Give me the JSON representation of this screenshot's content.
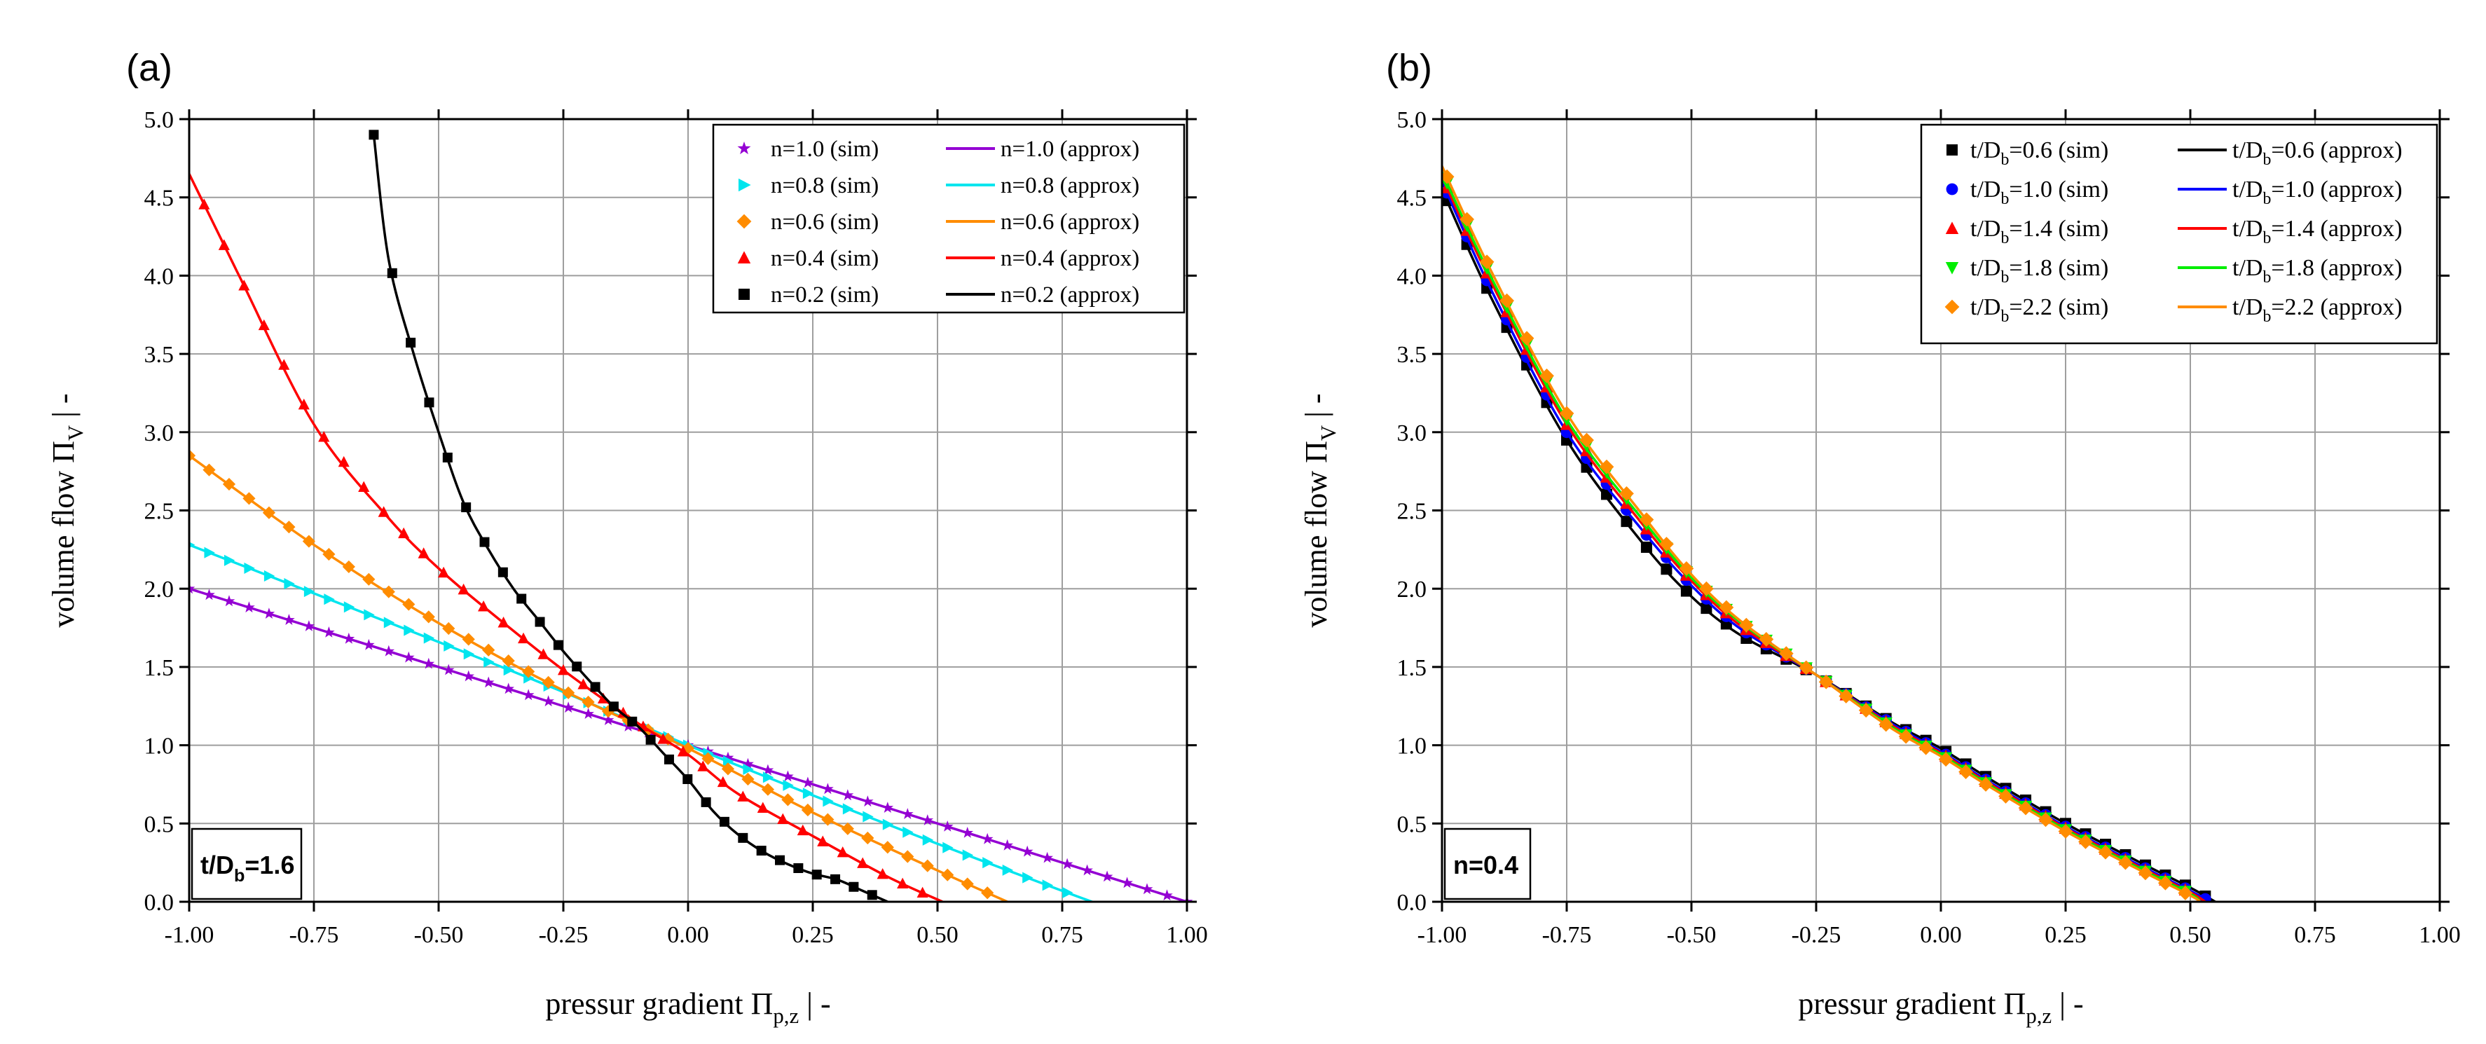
{
  "chart_data": [
    {
      "panel_label": "(a)",
      "type": "line",
      "xlabel": "pressur gradient Π_p,z | -",
      "xlabel_main": "pressur gradient Π",
      "xlabel_sub": "p,z",
      "xlabel_tail": "  |  -",
      "ylabel": "volume flow Π_V | -",
      "ylabel_main": "volume flow Π",
      "ylabel_sub": "V",
      "ylabel_tail": "  |  -",
      "xlim": [
        -1.0,
        1.0
      ],
      "ylim": [
        0.0,
        5.0
      ],
      "xticks": [
        -1.0,
        -0.75,
        -0.5,
        -0.25,
        0.0,
        0.25,
        0.5,
        0.75,
        1.0
      ],
      "xtick_labels": [
        "-1.00",
        "-0.75",
        "-0.50",
        "-0.25",
        "0.00",
        "0.25",
        "0.50",
        "0.75",
        "1.00"
      ],
      "yticks": [
        0.0,
        0.5,
        1.0,
        1.5,
        2.0,
        2.5,
        3.0,
        3.5,
        4.0,
        4.5,
        5.0
      ],
      "ytick_labels": [
        "0.0",
        "0.5",
        "1.0",
        "1.5",
        "2.0",
        "2.5",
        "3.0",
        "3.5",
        "4.0",
        "4.5",
        "5.0"
      ],
      "grid": true,
      "annotation": {
        "main": "t/D",
        "sub": "b",
        "tail": "=1.6"
      },
      "legend_position": "top-right",
      "series": [
        {
          "name": "n=1.0",
          "sim_label": "n=1.0 (sim)",
          "approx_label": "n=1.0 (approx)",
          "color": "#9400D3",
          "marker": "star",
          "x": [
            -1.0,
            -0.5,
            0.0,
            0.5,
            1.0
          ],
          "y": [
            2.0,
            1.5,
            1.0,
            0.5,
            0.0
          ],
          "marker_x": [
            -1.0,
            1.0
          ],
          "marker_step": 0.04
        },
        {
          "name": "n=0.8",
          "sim_label": "n=0.8 (sim)",
          "approx_label": "n=0.8 (approx)",
          "color": "#00E5EE",
          "marker": "triangle-right",
          "x": [
            -1.0,
            -0.75,
            -0.5,
            -0.25,
            0.0,
            0.25,
            0.5,
            0.75,
            0.81
          ],
          "y": [
            2.28,
            1.97,
            1.66,
            1.34,
            1.0,
            0.68,
            0.37,
            0.07,
            0.0
          ],
          "marker_x": [
            -1.0,
            0.79
          ],
          "marker_step": 0.04
        },
        {
          "name": "n=0.6",
          "sim_label": "n=0.6 (sim)",
          "approx_label": "n=0.6 (approx)",
          "color": "#FF8C00",
          "marker": "diamond",
          "x": [
            -1.0,
            -0.75,
            -0.5,
            -0.25,
            0.0,
            0.25,
            0.5,
            0.64
          ],
          "y": [
            2.85,
            2.28,
            1.78,
            1.35,
            0.98,
            0.57,
            0.2,
            0.0
          ],
          "marker_x": [
            -1.0,
            0.63
          ],
          "marker_step": 0.04
        },
        {
          "name": "n=0.4",
          "sim_label": "n=0.4 (sim)",
          "approx_label": "n=0.4 (approx)",
          "color": "#FF0000",
          "marker": "triangle-up",
          "x": [
            -1.0,
            -0.9,
            -0.75,
            -0.6,
            -0.5,
            -0.4,
            -0.25,
            -0.1,
            0.0,
            0.1,
            0.25,
            0.4,
            0.51
          ],
          "y": [
            4.65,
            4.0,
            3.05,
            2.45,
            2.13,
            1.86,
            1.48,
            1.14,
            0.94,
            0.69,
            0.42,
            0.16,
            0.0
          ],
          "marker_x": [
            -0.97,
            0.49
          ],
          "marker_step": 0.04
        },
        {
          "name": "n=0.2",
          "sim_label": "n=0.2 (sim)",
          "approx_label": "n=0.2 (approx)",
          "color": "#000000",
          "marker": "square",
          "x": [
            -0.63,
            -0.6,
            -0.55,
            -0.5,
            -0.45,
            -0.4,
            -0.35,
            -0.3,
            -0.25,
            -0.2,
            -0.15,
            -0.1,
            -0.05,
            0.0,
            0.05,
            0.1,
            0.15,
            0.2,
            0.25,
            0.3,
            0.35,
            0.4
          ],
          "y": [
            4.9,
            4.1,
            3.5,
            3.0,
            2.55,
            2.25,
            2.0,
            1.8,
            1.6,
            1.42,
            1.25,
            1.12,
            0.95,
            0.78,
            0.58,
            0.43,
            0.32,
            0.24,
            0.18,
            0.14,
            0.07,
            0.0
          ],
          "marker_x": [
            -0.63,
            0.4
          ],
          "marker_step": 0.037
        }
      ]
    },
    {
      "panel_label": "(b)",
      "type": "line",
      "xlabel": "pressur gradient Π_p,z | -",
      "xlabel_main": "pressur gradient Π",
      "xlabel_sub": "p,z",
      "xlabel_tail": "  |  -",
      "ylabel": "volume flow Π_V | -",
      "ylabel_main": "volume flow Π",
      "ylabel_sub": "V",
      "ylabel_tail": "  |  -",
      "xlim": [
        -1.0,
        1.0
      ],
      "ylim": [
        0.0,
        5.0
      ],
      "xticks": [
        -1.0,
        -0.75,
        -0.5,
        -0.25,
        0.0,
        0.25,
        0.5,
        0.75,
        1.0
      ],
      "xtick_labels": [
        "-1.00",
        "-0.75",
        "-0.50",
        "-0.25",
        "0.00",
        "0.25",
        "0.50",
        "0.75",
        "1.00"
      ],
      "yticks": [
        0.0,
        0.5,
        1.0,
        1.5,
        2.0,
        2.5,
        3.0,
        3.5,
        4.0,
        4.5,
        5.0
      ],
      "ytick_labels": [
        "0.0",
        "0.5",
        "1.0",
        "1.5",
        "2.0",
        "2.5",
        "3.0",
        "3.5",
        "4.0",
        "4.5",
        "5.0"
      ],
      "grid": true,
      "annotation": {
        "main": "n=0.4",
        "sub": "",
        "tail": ""
      },
      "legend_position": "top-right",
      "series": [
        {
          "name": "t/Db=0.6",
          "sim_main": "t/D",
          "sim_sub": "b",
          "sim_tail": "=0.6 (sim)",
          "approx_main": "t/D",
          "approx_sub": "b",
          "approx_tail": "=0.6 (approx)",
          "color": "#000000",
          "marker": "square",
          "x": [
            -1.0,
            -0.9,
            -0.75,
            -0.6,
            -0.5,
            -0.4,
            -0.25,
            -0.1,
            0.0,
            0.1,
            0.25,
            0.4,
            0.5,
            0.55
          ],
          "y": [
            4.55,
            3.85,
            2.95,
            2.3,
            1.95,
            1.7,
            1.45,
            1.15,
            0.98,
            0.78,
            0.5,
            0.25,
            0.09,
            0.0
          ],
          "marker_x": [
            -0.99,
            0.55
          ],
          "marker_step": 0.04
        },
        {
          "name": "t/Db=1.0",
          "sim_main": "t/D",
          "sim_sub": "b",
          "sim_tail": "=1.0 (sim)",
          "approx_main": "t/D",
          "approx_sub": "b",
          "approx_tail": "=1.0 (approx)",
          "color": "#0000FF",
          "marker": "circle",
          "x": [
            -1.0,
            -0.9,
            -0.75,
            -0.6,
            -0.5,
            -0.4,
            -0.25,
            -0.1,
            0.0,
            0.1,
            0.25,
            0.4,
            0.5,
            0.54
          ],
          "y": [
            4.6,
            3.9,
            3.0,
            2.38,
            2.02,
            1.74,
            1.45,
            1.14,
            0.96,
            0.76,
            0.48,
            0.23,
            0.07,
            0.0
          ],
          "marker_x": [
            -0.99,
            0.53
          ],
          "marker_step": 0.04
        },
        {
          "name": "t/Db=1.4",
          "sim_main": "t/D",
          "sim_sub": "b",
          "sim_tail": "=1.4 (sim)",
          "approx_main": "t/D",
          "approx_sub": "b",
          "approx_tail": "=1.4 (approx)",
          "color": "#FF0000",
          "marker": "triangle-up",
          "x": [
            -1.0,
            -0.9,
            -0.75,
            -0.6,
            -0.5,
            -0.4,
            -0.25,
            -0.1,
            0.0,
            0.1,
            0.25,
            0.4,
            0.5,
            0.53
          ],
          "y": [
            4.63,
            3.95,
            3.05,
            2.42,
            2.05,
            1.76,
            1.45,
            1.13,
            0.95,
            0.75,
            0.47,
            0.22,
            0.06,
            0.0
          ],
          "marker_x": [
            -0.99,
            0.52
          ],
          "marker_step": 0.04
        },
        {
          "name": "t/Db=1.8",
          "sim_main": "t/D",
          "sim_sub": "b",
          "sim_tail": "=1.8 (sim)",
          "approx_main": "t/D",
          "approx_sub": "b",
          "approx_tail": "=1.8 (approx)",
          "color": "#00EE00",
          "marker": "triangle-down",
          "x": [
            -1.0,
            -0.9,
            -0.75,
            -0.6,
            -0.5,
            -0.4,
            -0.25,
            -0.1,
            0.0,
            0.1,
            0.25,
            0.4,
            0.5,
            0.52
          ],
          "y": [
            4.66,
            3.98,
            3.08,
            2.45,
            2.07,
            1.78,
            1.45,
            1.12,
            0.94,
            0.74,
            0.46,
            0.21,
            0.05,
            0.0
          ],
          "marker_x": [
            -0.99,
            0.51
          ],
          "marker_step": 0.04
        },
        {
          "name": "t/Db=2.2",
          "sim_main": "t/D",
          "sim_sub": "b",
          "sim_tail": "=2.2 (sim)",
          "approx_main": "t/D",
          "approx_sub": "b",
          "approx_tail": "=2.2 (approx)",
          "color": "#FF8C00",
          "marker": "diamond",
          "x": [
            -1.0,
            -0.9,
            -0.75,
            -0.6,
            -0.5,
            -0.4,
            -0.25,
            -0.1,
            0.0,
            0.1,
            0.25,
            0.4,
            0.5,
            0.52
          ],
          "y": [
            4.7,
            4.02,
            3.12,
            2.48,
            2.09,
            1.79,
            1.45,
            1.11,
            0.93,
            0.73,
            0.45,
            0.2,
            0.04,
            0.0
          ],
          "marker_x": [
            -0.99,
            0.51
          ],
          "marker_step": 0.04
        }
      ]
    }
  ]
}
